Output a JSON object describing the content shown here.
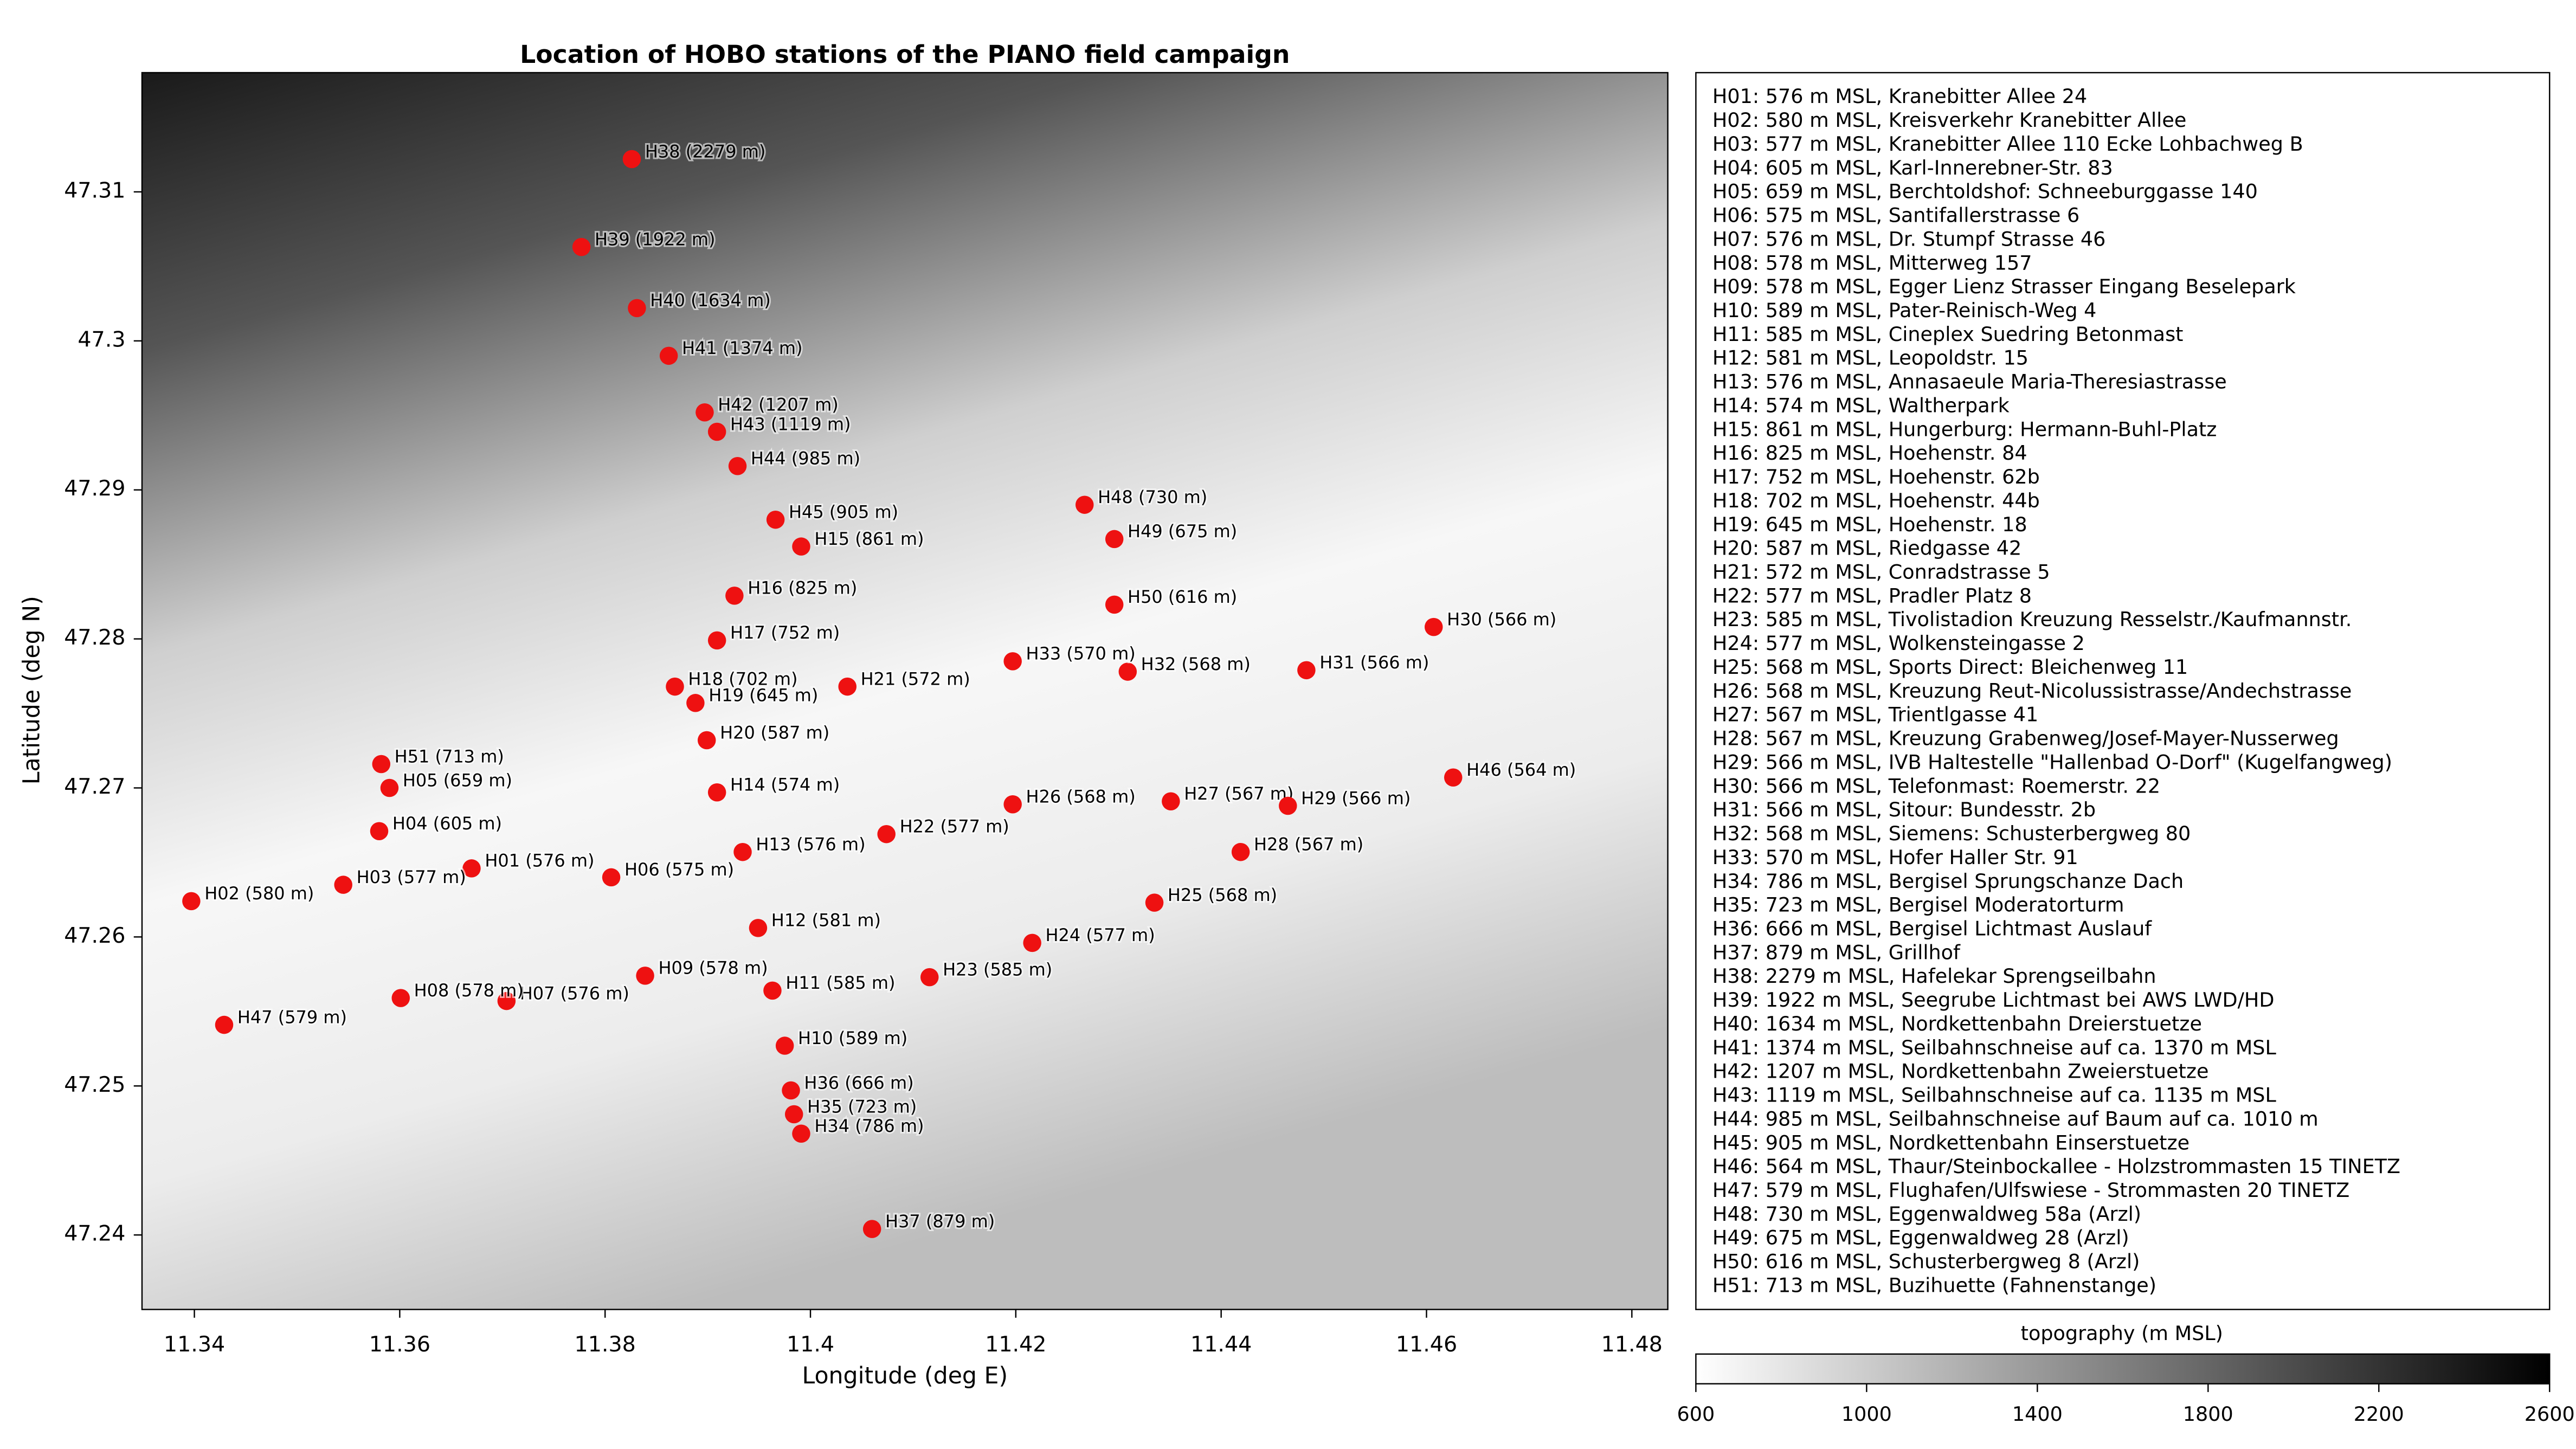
{
  "chart_data": {
    "type": "scatter",
    "title": "Location of HOBO stations of the PIANO field campaign",
    "xlabel": "Longitude (deg E)",
    "ylabel": "Latitude (deg N)",
    "xlim": [
      11.3349,
      11.4835
    ],
    "ylim": [
      47.235,
      47.318
    ],
    "xticks": [
      11.34,
      11.36,
      11.38,
      11.4,
      11.42,
      11.44,
      11.46,
      11.48
    ],
    "yticks": [
      47.24,
      47.25,
      47.26,
      47.27,
      47.28,
      47.29,
      47.3,
      47.31
    ],
    "color": "#ee1111",
    "x": [
      11.367,
      11.3397,
      11.3545,
      11.358,
      11.359,
      11.3806,
      11.3704,
      11.3601,
      11.3839,
      11.3975,
      11.3963,
      11.3949,
      11.3934,
      11.3909,
      11.3991,
      11.3926,
      11.3909,
      11.3868,
      11.3888,
      11.3899,
      11.4036,
      11.4074,
      11.4116,
      11.4216,
      11.4335,
      11.4197,
      11.4351,
      11.4419,
      11.4465,
      11.4607,
      11.4483,
      11.4309,
      11.4197,
      11.3991,
      11.3984,
      11.3981,
      11.406,
      11.3826,
      11.3777,
      11.3831,
      11.3862,
      11.3897,
      11.3909,
      11.3929,
      11.3966,
      11.4626,
      11.3429,
      11.4267,
      11.4296,
      11.4296,
      11.3582
    ],
    "y": [
      47.2646,
      47.2624,
      47.2635,
      47.2671,
      47.27,
      47.264,
      47.2557,
      47.2559,
      47.2574,
      47.2527,
      47.2564,
      47.2606,
      47.2657,
      47.2697,
      47.2862,
      47.2829,
      47.2799,
      47.2768,
      47.2757,
      47.2732,
      47.2768,
      47.2669,
      47.2573,
      47.2596,
      47.2623,
      47.2689,
      47.2691,
      47.2657,
      47.2688,
      47.2808,
      47.2779,
      47.2778,
      47.2785,
      47.2468,
      47.2481,
      47.2497,
      47.2404,
      47.3122,
      47.3063,
      47.3022,
      47.299,
      47.2952,
      47.2939,
      47.2916,
      47.288,
      47.2707,
      47.2541,
      47.289,
      47.2867,
      47.2823,
      47.2716
    ],
    "labels": [
      "H01 (576 m)",
      "H02 (580 m)",
      "H03 (577 m)",
      "H04 (605 m)",
      "H05 (659 m)",
      "H06 (575 m)",
      "H07 (576 m)",
      "H08 (578 m)",
      "H09 (578 m)",
      "H10 (589 m)",
      "H11 (585 m)",
      "H12 (581 m)",
      "H13 (576 m)",
      "H14 (574 m)",
      "H15 (861 m)",
      "H16 (825 m)",
      "H17 (752 m)",
      "H18 (702 m)",
      "H19 (645 m)",
      "H20 (587 m)",
      "H21 (572 m)",
      "H22 (577 m)",
      "H23 (585 m)",
      "H24 (577 m)",
      "H25 (568 m)",
      "H26 (568 m)",
      "H27 (567 m)",
      "H28 (567 m)",
      "H29 (566 m)",
      "H30 (566 m)",
      "H31 (566 m)",
      "H32 (568 m)",
      "H33 (570 m)",
      "H34 (786 m)",
      "H35 (723 m)",
      "H36 (666 m)",
      "H37 (879 m)",
      "H38 (2279 m)",
      "H39 (1922 m)",
      "H40 (1634 m)",
      "H41 (1374 m)",
      "H42 (1207 m)",
      "H43 (1119 m)",
      "H44 (985 m)",
      "H45 (905 m)",
      "H46 (564 m)",
      "H47 (579 m)",
      "H48 (730 m)",
      "H49 (675 m)",
      "H50 (616 m)",
      "H51 (713 m)"
    ],
    "station_list": [
      "H01: 576 m MSL, Kranebitter Allee 24",
      "H02: 580 m MSL, Kreisverkehr Kranebitter Allee",
      "H03: 577 m MSL, Kranebitter Allee 110 Ecke Lohbachweg B",
      "H04: 605 m MSL, Karl-Innerebner-Str. 83",
      "H05: 659 m MSL, Berchtoldshof: Schneeburggasse 140",
      "H06: 575 m MSL, Santifallerstrasse 6",
      "H07: 576 m MSL, Dr. Stumpf Strasse 46",
      "H08: 578 m MSL, Mitterweg 157",
      "H09: 578 m MSL, Egger Lienz Strasser Eingang Beselepark",
      "H10: 589 m MSL, Pater-Reinisch-Weg 4",
      "H11: 585 m MSL, Cineplex Suedring Betonmast",
      "H12: 581 m MSL, Leopoldstr. 15",
      "H13: 576 m MSL, Annasaeule Maria-Theresiastrasse",
      "H14: 574 m MSL, Waltherpark",
      "H15: 861 m MSL, Hungerburg: Hermann-Buhl-Platz",
      "H16: 825 m MSL, Hoehenstr. 84",
      "H17: 752 m MSL, Hoehenstr. 62b",
      "H18: 702 m MSL, Hoehenstr. 44b",
      "H19: 645 m MSL, Hoehenstr. 18",
      "H20: 587 m MSL, Riedgasse 42",
      "H21: 572 m MSL, Conradstrasse 5",
      "H22: 577 m MSL, Pradler Platz 8",
      "H23: 585 m MSL, Tivolistadion Kreuzung Resselstr./Kaufmannstr.",
      "H24: 577 m MSL, Wolkensteingasse 2",
      "H25: 568 m MSL, Sports Direct: Bleichenweg 11",
      "H26: 568 m MSL, Kreuzung Reut-Nicolussistrasse/Andechstrasse",
      "H27: 567 m MSL, Trientlgasse 41",
      "H28: 567 m MSL, Kreuzung Grabenweg/Josef-Mayer-Nusserweg",
      "H29: 566 m MSL, IVB Haltestelle \"Hallenbad O-Dorf\" (Kugelfangweg)",
      "H30: 566 m MSL, Telefonmast: Roemerstr. 22",
      "H31: 566 m MSL, Sitour: Bundesstr. 2b",
      "H32: 568 m MSL, Siemens: Schusterbergweg 80",
      "H33: 570 m MSL, Hofer Haller Str. 91",
      "H34: 786 m MSL, Bergisel Sprungschanze Dach",
      "H35: 723 m MSL, Bergisel Moderatorturm",
      "H36: 666 m MSL, Bergisel Lichtmast Auslauf",
      "H37: 879 m MSL, Grillhof",
      "H38: 2279 m MSL, Hafelekar Sprengseilbahn",
      "H39: 1922 m MSL, Seegrube Lichtmast bei AWS LWD/HD",
      "H40: 1634 m MSL, Nordkettenbahn Dreierstuetze",
      "H41: 1374 m MSL, Seilbahnschneise auf ca. 1370 m MSL",
      "H42: 1207 m MSL, Nordkettenbahn Zweierstuetze",
      "H43: 1119 m MSL, Seilbahnschneise auf ca. 1135 m MSL",
      "H44: 985 m MSL, Seilbahnschneise auf Baum auf ca. 1010 m",
      "H45: 905 m MSL, Nordkettenbahn Einserstuetze",
      "H46: 564 m MSL, Thaur/Steinbockallee - Holzstrommasten 15 TINETZ",
      "H47: 579 m MSL, Flughafen/Ulfswiese - Strommasten 20 TINETZ",
      "H48: 730 m MSL, Eggenwaldweg 58a (Arzl)",
      "H49: 675 m MSL, Eggenwaldweg 28 (Arzl)",
      "H50: 616 m MSL, Schusterbergweg 8 (Arzl)",
      "H51: 713 m MSL, Buzihuette (Fahnenstange)"
    ],
    "colorbar": {
      "label": "topography (m MSL)",
      "lim": [
        600,
        2600
      ],
      "ticks": [
        600,
        1000,
        1400,
        1800,
        2200,
        2600
      ]
    }
  }
}
